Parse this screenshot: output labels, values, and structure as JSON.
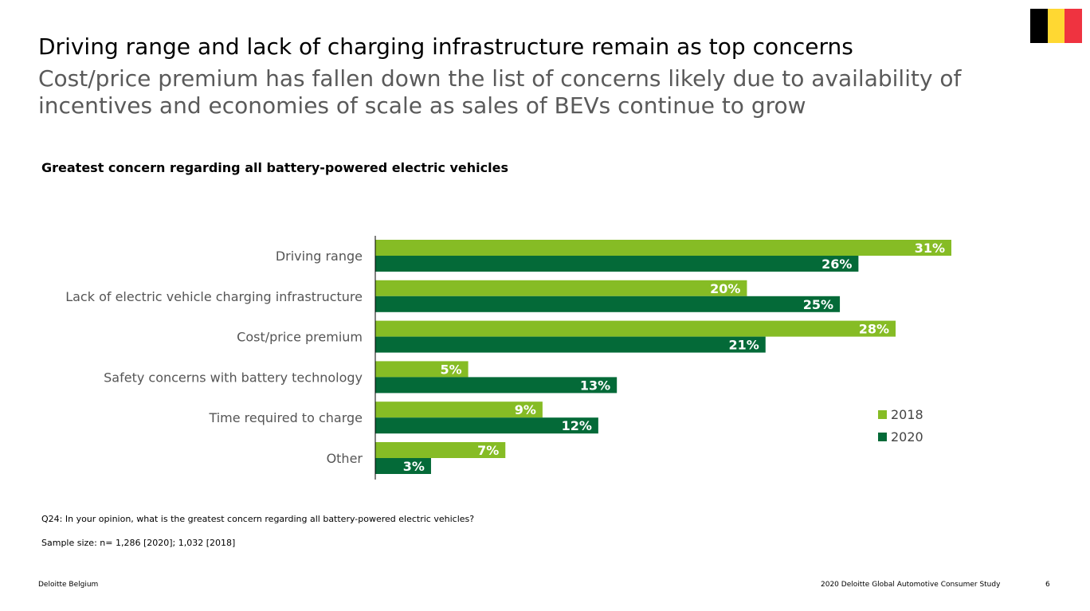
{
  "flag": {
    "colors": [
      "#000000",
      "#FFD832",
      "#EF3340"
    ]
  },
  "title": "Driving range and lack of charging infrastructure remain as top concerns",
  "subtitle": "Cost/price premium has fallen down the list of concerns likely due to availability of incentives and economies of scale as sales of BEVs continue to grow",
  "chart_data": {
    "type": "bar",
    "orientation": "horizontal",
    "title": "Greatest concern regarding all battery-powered electric vehicles",
    "categories": [
      "Driving range",
      "Lack of electric vehicle charging infrastructure",
      "Cost/price premium",
      "Safety concerns with battery technology",
      "Time required to charge",
      "Other"
    ],
    "series": [
      {
        "name": "2018",
        "color": "#86BC25",
        "values": [
          31,
          20,
          28,
          5,
          9,
          7
        ],
        "labels": [
          "31%",
          "20%",
          "28%",
          "5%",
          "9%",
          "7%"
        ]
      },
      {
        "name": "2020",
        "color": "#046A38",
        "values": [
          26,
          25,
          21,
          13,
          12,
          3
        ],
        "labels": [
          "26%",
          "25%",
          "21%",
          "13%",
          "12%",
          "3%"
        ]
      }
    ],
    "xlim": [
      0,
      31
    ],
    "unit": "%",
    "legend_position": "right"
  },
  "legend": {
    "items": [
      "2018",
      "2020"
    ]
  },
  "question": "Q24: In your opinion, what is the greatest concern regarding all battery-powered electric vehicles?",
  "sample": "Sample size: n= 1,286 [2020]; 1,032 [2018]",
  "footer": {
    "left": "Deloitte Belgium",
    "right": "2020 Deloitte Global Automotive Consumer Study",
    "page": "6"
  }
}
